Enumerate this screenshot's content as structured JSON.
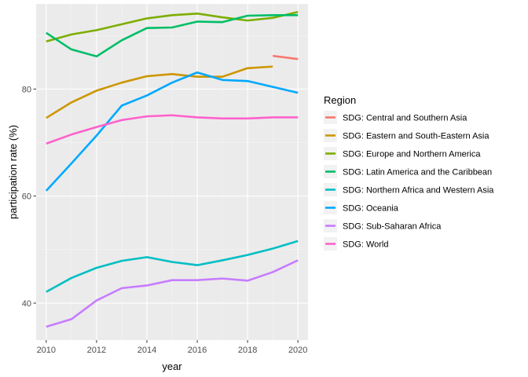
{
  "chart_data": {
    "type": "line",
    "title": "",
    "xlabel": "year",
    "ylabel": "participation rate (%)",
    "xlim": [
      2009.6,
      2020.4
    ],
    "ylim": [
      33.1,
      95.9
    ],
    "x_ticks": [
      2010,
      2012,
      2014,
      2016,
      2018,
      2020
    ],
    "y_ticks": [
      40,
      60,
      80
    ],
    "grid": true,
    "legend": {
      "title": "Region",
      "position": "right"
    },
    "series": [
      {
        "name": "SDG: Central and Southern Asia",
        "color": "#F8766D",
        "x": [
          2019,
          2020
        ],
        "values": [
          86.2,
          85.6
        ]
      },
      {
        "name": "SDG: Eastern and South-Eastern Asia",
        "color": "#CD9600",
        "x": [
          2010,
          2011,
          2012,
          2013,
          2014,
          2015,
          2016,
          2017,
          2018,
          2019
        ],
        "values": [
          74.6,
          77.5,
          79.7,
          81.2,
          82.4,
          82.8,
          82.3,
          82.3,
          83.9,
          84.2
        ]
      },
      {
        "name": "SDG: Europe and Northern America",
        "color": "#7CAE00",
        "x": [
          2010,
          2011,
          2012,
          2013,
          2014,
          2015,
          2016,
          2017,
          2018,
          2019,
          2020
        ],
        "values": [
          88.9,
          90.2,
          91.0,
          92.1,
          93.2,
          93.8,
          94.1,
          93.4,
          92.8,
          93.3,
          94.4
        ]
      },
      {
        "name": "SDG: Latin America and the Caribbean",
        "color": "#00BE67",
        "x": [
          2010,
          2011,
          2012,
          2013,
          2014,
          2015,
          2016,
          2017,
          2018,
          2019,
          2020
        ],
        "values": [
          90.5,
          87.4,
          86.1,
          89.1,
          91.4,
          91.5,
          92.6,
          92.5,
          93.7,
          93.8,
          93.8
        ]
      },
      {
        "name": "SDG: Northern Africa and Western Asia",
        "color": "#00BFC4",
        "x": [
          2010,
          2011,
          2012,
          2013,
          2014,
          2015,
          2016,
          2017,
          2018,
          2019,
          2020
        ],
        "values": [
          42.1,
          44.7,
          46.6,
          47.9,
          48.6,
          47.7,
          47.1,
          48.0,
          49.0,
          50.2,
          51.6
        ]
      },
      {
        "name": "SDG: Oceania",
        "color": "#00A9FF",
        "x": [
          2010,
          2011,
          2012,
          2013,
          2014,
          2015,
          2016,
          2017,
          2018,
          2019,
          2020
        ],
        "values": [
          61.0,
          66.1,
          71.3,
          76.9,
          78.8,
          81.2,
          83.1,
          81.7,
          81.5,
          80.4,
          79.3
        ]
      },
      {
        "name": "SDG: Sub-Saharan Africa",
        "color": "#C77CFF",
        "x": [
          2010,
          2011,
          2012,
          2013,
          2014,
          2015,
          2016,
          2017,
          2018,
          2019,
          2020
        ],
        "values": [
          35.6,
          37.0,
          40.5,
          42.8,
          43.3,
          44.3,
          44.3,
          44.6,
          44.2,
          45.8,
          48.0
        ]
      },
      {
        "name": "SDG: World",
        "color": "#FF61CC",
        "x": [
          2010,
          2011,
          2012,
          2013,
          2014,
          2015,
          2016,
          2017,
          2018,
          2019,
          2020
        ],
        "values": [
          69.8,
          71.5,
          72.9,
          74.2,
          74.9,
          75.1,
          74.7,
          74.5,
          74.5,
          74.7,
          74.7
        ]
      }
    ]
  }
}
